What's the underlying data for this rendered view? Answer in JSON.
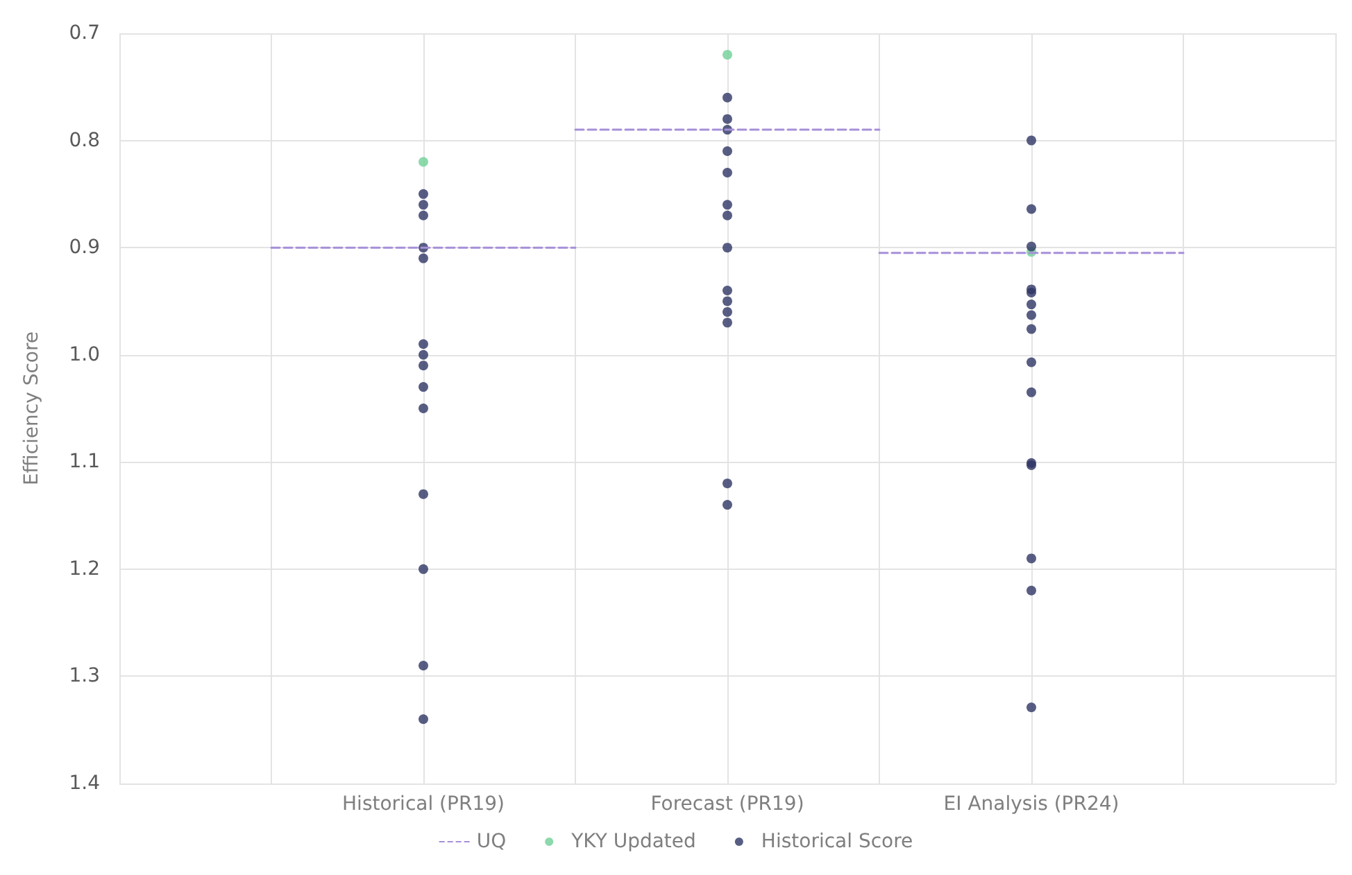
{
  "chart_data": {
    "type": "scatter",
    "ylabel": "Efficiency Score",
    "categories": [
      null,
      null,
      "Historical (PR19)",
      null,
      "Forecast (PR19)",
      null,
      "EI Analysis (PR24)",
      null,
      null
    ],
    "ylim": [
      1.4,
      0.7
    ],
    "yticks": [
      {
        "value": 0.7,
        "label": "0.7"
      },
      {
        "value": 0.8,
        "label": "0.8"
      },
      {
        "value": 0.9,
        "label": "0.9"
      },
      {
        "value": 1.0,
        "label": "1.0"
      },
      {
        "value": 1.1,
        "label": "1.1"
      },
      {
        "value": 1.2,
        "label": "1.2"
      },
      {
        "value": 1.3,
        "label": "1.3"
      },
      {
        "value": 1.4,
        "label": "1.4"
      }
    ],
    "grid": true,
    "legend": "bottom",
    "marker": "circle",
    "series": [
      {
        "name": "UQ",
        "type": "line",
        "marker": "none",
        "line_style": "dashed",
        "color": "#a68fd9",
        "values": [
          null,
          0.9,
          0.9,
          0.9,
          null,
          null,
          null,
          null,
          null
        ]
      },
      {
        "type": "line",
        "marker": "none",
        "line_style": "dashed",
        "color": "#a68fd9",
        "values": [
          null,
          null,
          null,
          0.79,
          0.79,
          0.79,
          null,
          null,
          null
        ]
      },
      {
        "type": "line",
        "marker": "none",
        "line_style": "dashed",
        "color": "#a68fd9",
        "values": [
          null,
          null,
          null,
          null,
          null,
          0.905,
          0.905,
          0.905,
          null
        ]
      },
      {
        "name": "YKY Updated",
        "color": "#6fcf97",
        "x": [
          "Historical (PR19)",
          "Forecast (PR19)",
          "EI Analysis (PR24)"
        ],
        "values": [
          0.82,
          0.72,
          0.904
        ]
      },
      {
        "name": "Historical Score",
        "color": "#2e3464",
        "x": [
          "Historical (PR19)",
          "Historical (PR19)",
          "Historical (PR19)",
          "Historical (PR19)",
          "Historical (PR19)",
          "Historical (PR19)",
          "Historical (PR19)",
          "Historical (PR19)",
          "Historical (PR19)",
          "Historical (PR19)",
          "Historical (PR19)",
          "Historical (PR19)",
          "Historical (PR19)",
          "Historical (PR19)",
          "Forecast (PR19)",
          "Forecast (PR19)",
          "Forecast (PR19)",
          "Forecast (PR19)",
          "Forecast (PR19)",
          "Forecast (PR19)",
          "Forecast (PR19)",
          "Forecast (PR19)",
          "Forecast (PR19)",
          "Forecast (PR19)",
          "Forecast (PR19)",
          "Forecast (PR19)",
          "Forecast (PR19)",
          "Forecast (PR19)",
          "EI Analysis (PR24)",
          "EI Analysis (PR24)",
          "EI Analysis (PR24)",
          "EI Analysis (PR24)",
          "EI Analysis (PR24)",
          "EI Analysis (PR24)",
          "EI Analysis (PR24)",
          "EI Analysis (PR24)",
          "EI Analysis (PR24)",
          "EI Analysis (PR24)",
          "EI Analysis (PR24)",
          "EI Analysis (PR24)",
          "EI Analysis (PR24)",
          "EI Analysis (PR24)",
          "EI Analysis (PR24)"
        ],
        "values": [
          0.85,
          0.86,
          0.87,
          0.9,
          0.91,
          0.99,
          1.0,
          1.01,
          1.03,
          1.05,
          1.13,
          1.2,
          1.29,
          1.34,
          0.76,
          0.78,
          0.79,
          0.81,
          0.83,
          0.86,
          0.87,
          0.9,
          0.94,
          0.95,
          0.96,
          0.97,
          1.12,
          1.14,
          0.8,
          0.864,
          0.899,
          0.939,
          0.942,
          0.953,
          0.963,
          0.976,
          1.007,
          1.035,
          1.101,
          1.103,
          1.19,
          1.22,
          1.329
        ]
      }
    ]
  }
}
